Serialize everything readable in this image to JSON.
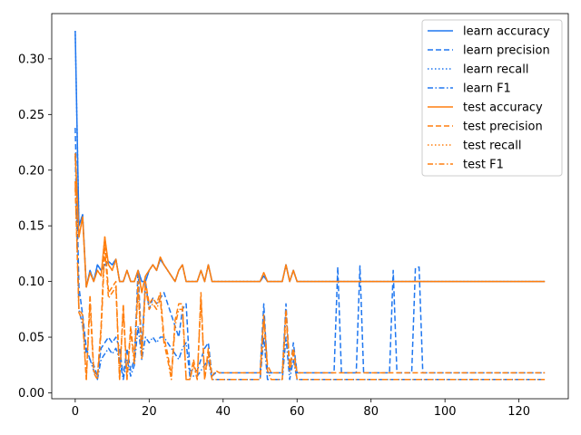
{
  "chart_data": {
    "type": "line",
    "title": "",
    "xlabel": "",
    "ylabel": "",
    "xlim": [
      -6.35,
      133.35
    ],
    "ylim": [
      -0.0053,
      0.3406
    ],
    "xticks": [
      0,
      20,
      40,
      60,
      80,
      100,
      120
    ],
    "yticks": [
      0.0,
      0.05,
      0.1,
      0.15,
      0.2,
      0.25,
      0.3
    ],
    "ytick_labels": [
      "0.00",
      "0.05",
      "0.10",
      "0.15",
      "0.20",
      "0.25",
      "0.30"
    ],
    "grid": false,
    "legend_position": "top-right",
    "colors": {
      "learn": "#1f77f0",
      "test": "#ff7f0e"
    },
    "series": [
      {
        "name": "learn accuracy",
        "color": "#1f77f0",
        "dash": "solid",
        "values": [
          0.325,
          0.15,
          0.16,
          0.095,
          0.11,
          0.1,
          0.115,
          0.11,
          0.115,
          0.118,
          0.115,
          0.12,
          0.1,
          0.1,
          0.11,
          0.1,
          0.1,
          0.11,
          0.1,
          0.1,
          0.11,
          0.115,
          0.11,
          0.12,
          0.115,
          0.11,
          0.105,
          0.1,
          0.11,
          0.115,
          0.1,
          0.1,
          0.1,
          0.1,
          0.11,
          0.1,
          0.115,
          0.1,
          0.1,
          0.1,
          0.1,
          0.1,
          0.1,
          0.1,
          0.1,
          0.1,
          0.1,
          0.1,
          0.1,
          0.1,
          0.1,
          0.105,
          0.1,
          0.1,
          0.1,
          0.1,
          0.1,
          0.115,
          0.1,
          0.11,
          0.1,
          0.1,
          0.1,
          0.1,
          0.1,
          0.1,
          0.1,
          0.1,
          0.1,
          0.1,
          0.1,
          0.1,
          0.1,
          0.1,
          0.1,
          0.1,
          0.1,
          0.1,
          0.1,
          0.1,
          0.1,
          0.1,
          0.1,
          0.1,
          0.1,
          0.1,
          0.1,
          0.1,
          0.1,
          0.1,
          0.1,
          0.1,
          0.1,
          0.1,
          0.1,
          0.1,
          0.1,
          0.1,
          0.1,
          0.1,
          0.1,
          0.1,
          0.1,
          0.1,
          0.1,
          0.1,
          0.1,
          0.1,
          0.1,
          0.1,
          0.1,
          0.1,
          0.1,
          0.1,
          0.1,
          0.1,
          0.1,
          0.1,
          0.1,
          0.1,
          0.1,
          0.1,
          0.1,
          0.1,
          0.1,
          0.1,
          0.1,
          0.1
        ]
      },
      {
        "name": "learn precision",
        "color": "#1f77f0",
        "dash": "dashed",
        "values": [
          0.238,
          0.095,
          0.07,
          0.04,
          0.03,
          0.025,
          0.015,
          0.04,
          0.045,
          0.05,
          0.045,
          0.05,
          0.04,
          0.015,
          0.04,
          0.02,
          0.03,
          0.11,
          0.04,
          0.1,
          0.075,
          0.085,
          0.08,
          0.085,
          0.09,
          0.08,
          0.07,
          0.06,
          0.05,
          0.075,
          0.08,
          0.02,
          0.02,
          0.02,
          0.03,
          0.04,
          0.045,
          0.015,
          0.018,
          0.018,
          0.018,
          0.018,
          0.018,
          0.018,
          0.018,
          0.018,
          0.018,
          0.018,
          0.018,
          0.018,
          0.018,
          0.08,
          0.018,
          0.018,
          0.018,
          0.018,
          0.018,
          0.08,
          0.018,
          0.045,
          0.018,
          0.018,
          0.018,
          0.018,
          0.018,
          0.018,
          0.018,
          0.018,
          0.018,
          0.018,
          0.018,
          0.113,
          0.018,
          0.018,
          0.018,
          0.018,
          0.018,
          0.114,
          0.018,
          0.018,
          0.018,
          0.018,
          0.018,
          0.018,
          0.018,
          0.018,
          0.11,
          0.018,
          0.018,
          0.018,
          0.018,
          0.018,
          0.112,
          0.113,
          0.018,
          0.018,
          0.018,
          0.018,
          0.018,
          0.018,
          0.018,
          0.018,
          0.018,
          0.018,
          0.018,
          0.018,
          0.018,
          0.018,
          0.018,
          0.018,
          0.018,
          0.018,
          0.018,
          0.018,
          0.018,
          0.018,
          0.018,
          0.018,
          0.018,
          0.018,
          0.018,
          0.018,
          0.018,
          0.018,
          0.018,
          0.018,
          0.018,
          0.018
        ]
      },
      {
        "name": "learn recall",
        "color": "#1f77f0",
        "dash": "dotted",
        "values": [
          0.325,
          0.15,
          0.16,
          0.095,
          0.11,
          0.1,
          0.115,
          0.11,
          0.115,
          0.118,
          0.115,
          0.12,
          0.1,
          0.1,
          0.11,
          0.1,
          0.1,
          0.11,
          0.1,
          0.1,
          0.11,
          0.115,
          0.11,
          0.12,
          0.115,
          0.11,
          0.105,
          0.1,
          0.11,
          0.115,
          0.1,
          0.1,
          0.1,
          0.1,
          0.11,
          0.1,
          0.115,
          0.1,
          0.1,
          0.1,
          0.1,
          0.1,
          0.1,
          0.1,
          0.1,
          0.1,
          0.1,
          0.1,
          0.1,
          0.1,
          0.1,
          0.105,
          0.1,
          0.1,
          0.1,
          0.1,
          0.1,
          0.115,
          0.1,
          0.11,
          0.1,
          0.1,
          0.1,
          0.1,
          0.1,
          0.1,
          0.1,
          0.1,
          0.1,
          0.1,
          0.1,
          0.1,
          0.1,
          0.1,
          0.1,
          0.1,
          0.1,
          0.1,
          0.1,
          0.1,
          0.1,
          0.1,
          0.1,
          0.1,
          0.1,
          0.1,
          0.1,
          0.1,
          0.1,
          0.1,
          0.1,
          0.1,
          0.1,
          0.1,
          0.1,
          0.1,
          0.1,
          0.1,
          0.1,
          0.1,
          0.1,
          0.1,
          0.1,
          0.1,
          0.1,
          0.1,
          0.1,
          0.1,
          0.1,
          0.1,
          0.1,
          0.1,
          0.1,
          0.1,
          0.1,
          0.1,
          0.1,
          0.1,
          0.1,
          0.1,
          0.1,
          0.1,
          0.1,
          0.1,
          0.1,
          0.1,
          0.1,
          0.1
        ]
      },
      {
        "name": "learn F1",
        "color": "#1f77f0",
        "dash": "dashdot",
        "values": [
          0.213,
          0.075,
          0.06,
          0.035,
          0.03,
          0.02,
          0.012,
          0.03,
          0.035,
          0.04,
          0.035,
          0.04,
          0.03,
          0.012,
          0.03,
          0.015,
          0.025,
          0.06,
          0.03,
          0.05,
          0.045,
          0.05,
          0.045,
          0.05,
          0.05,
          0.045,
          0.04,
          0.035,
          0.03,
          0.04,
          0.045,
          0.015,
          0.015,
          0.015,
          0.02,
          0.025,
          0.03,
          0.012,
          0.012,
          0.012,
          0.012,
          0.012,
          0.012,
          0.012,
          0.012,
          0.012,
          0.012,
          0.012,
          0.012,
          0.012,
          0.012,
          0.05,
          0.012,
          0.012,
          0.012,
          0.012,
          0.012,
          0.05,
          0.012,
          0.03,
          0.012,
          0.012,
          0.012,
          0.012,
          0.012,
          0.012,
          0.012,
          0.012,
          0.012,
          0.012,
          0.012,
          0.012,
          0.012,
          0.012,
          0.012,
          0.012,
          0.012,
          0.012,
          0.012,
          0.012,
          0.012,
          0.012,
          0.012,
          0.012,
          0.012,
          0.012,
          0.012,
          0.012,
          0.012,
          0.012,
          0.012,
          0.012,
          0.012,
          0.012,
          0.012,
          0.012,
          0.012,
          0.012,
          0.012,
          0.012,
          0.012,
          0.012,
          0.012,
          0.012,
          0.012,
          0.012,
          0.012,
          0.012,
          0.012,
          0.012,
          0.012,
          0.012,
          0.012,
          0.012,
          0.012,
          0.012,
          0.012,
          0.012,
          0.012,
          0.012,
          0.012,
          0.012,
          0.012,
          0.012,
          0.012,
          0.012,
          0.012,
          0.012
        ]
      },
      {
        "name": "test accuracy",
        "color": "#ff7f0e",
        "dash": "solid",
        "values": [
          0.215,
          0.14,
          0.158,
          0.095,
          0.108,
          0.1,
          0.11,
          0.105,
          0.14,
          0.115,
          0.11,
          0.12,
          0.1,
          0.1,
          0.11,
          0.1,
          0.1,
          0.11,
          0.09,
          0.105,
          0.11,
          0.115,
          0.11,
          0.122,
          0.115,
          0.11,
          0.105,
          0.1,
          0.11,
          0.115,
          0.1,
          0.1,
          0.1,
          0.1,
          0.11,
          0.1,
          0.115,
          0.1,
          0.1,
          0.1,
          0.1,
          0.1,
          0.1,
          0.1,
          0.1,
          0.1,
          0.1,
          0.1,
          0.1,
          0.1,
          0.1,
          0.108,
          0.1,
          0.1,
          0.1,
          0.1,
          0.1,
          0.115,
          0.1,
          0.11,
          0.1,
          0.1,
          0.1,
          0.1,
          0.1,
          0.1,
          0.1,
          0.1,
          0.1,
          0.1,
          0.1,
          0.1,
          0.1,
          0.1,
          0.1,
          0.1,
          0.1,
          0.1,
          0.1,
          0.1,
          0.1,
          0.1,
          0.1,
          0.1,
          0.1,
          0.1,
          0.1,
          0.1,
          0.1,
          0.1,
          0.1,
          0.1,
          0.1,
          0.1,
          0.1,
          0.1,
          0.1,
          0.1,
          0.1,
          0.1,
          0.1,
          0.1,
          0.1,
          0.1,
          0.1,
          0.1,
          0.1,
          0.1,
          0.1,
          0.1,
          0.1,
          0.1,
          0.1,
          0.1,
          0.1,
          0.1,
          0.1,
          0.1,
          0.1,
          0.1,
          0.1,
          0.1,
          0.1,
          0.1,
          0.1,
          0.1,
          0.1,
          0.1
        ]
      },
      {
        "name": "test precision",
        "color": "#ff7f0e",
        "dash": "dashed",
        "values": [
          0.19,
          0.075,
          0.07,
          0.012,
          0.088,
          0.02,
          0.015,
          0.06,
          0.14,
          0.09,
          0.095,
          0.1,
          0.012,
          0.08,
          0.012,
          0.06,
          0.03,
          0.1,
          0.035,
          0.1,
          0.08,
          0.085,
          0.08,
          0.09,
          0.05,
          0.035,
          0.015,
          0.065,
          0.08,
          0.08,
          0.012,
          0.012,
          0.03,
          0.012,
          0.09,
          0.012,
          0.04,
          0.015,
          0.02,
          0.018,
          0.018,
          0.018,
          0.018,
          0.018,
          0.018,
          0.018,
          0.018,
          0.018,
          0.018,
          0.018,
          0.018,
          0.07,
          0.025,
          0.018,
          0.018,
          0.018,
          0.018,
          0.075,
          0.025,
          0.04,
          0.018,
          0.018,
          0.018,
          0.018,
          0.018,
          0.018,
          0.018,
          0.018,
          0.018,
          0.018,
          0.018,
          0.018,
          0.018,
          0.018,
          0.018,
          0.018,
          0.018,
          0.018,
          0.018,
          0.018,
          0.018,
          0.018,
          0.018,
          0.018,
          0.018,
          0.018,
          0.018,
          0.018,
          0.018,
          0.018,
          0.018,
          0.018,
          0.018,
          0.018,
          0.018,
          0.018,
          0.018,
          0.018,
          0.018,
          0.018,
          0.018,
          0.018,
          0.018,
          0.018,
          0.018,
          0.018,
          0.018,
          0.018,
          0.018,
          0.018,
          0.018,
          0.018,
          0.018,
          0.018,
          0.018,
          0.018,
          0.018,
          0.018,
          0.018,
          0.018,
          0.018,
          0.018,
          0.018,
          0.018,
          0.018,
          0.018,
          0.018,
          0.018
        ]
      },
      {
        "name": "test recall",
        "color": "#ff7f0e",
        "dash": "dotted",
        "values": [
          0.215,
          0.14,
          0.158,
          0.095,
          0.108,
          0.1,
          0.11,
          0.105,
          0.14,
          0.115,
          0.11,
          0.12,
          0.1,
          0.1,
          0.11,
          0.1,
          0.1,
          0.11,
          0.09,
          0.105,
          0.11,
          0.115,
          0.11,
          0.122,
          0.115,
          0.11,
          0.105,
          0.1,
          0.11,
          0.115,
          0.1,
          0.1,
          0.1,
          0.1,
          0.11,
          0.1,
          0.115,
          0.1,
          0.1,
          0.1,
          0.1,
          0.1,
          0.1,
          0.1,
          0.1,
          0.1,
          0.1,
          0.1,
          0.1,
          0.1,
          0.1,
          0.108,
          0.1,
          0.1,
          0.1,
          0.1,
          0.1,
          0.115,
          0.1,
          0.11,
          0.1,
          0.1,
          0.1,
          0.1,
          0.1,
          0.1,
          0.1,
          0.1,
          0.1,
          0.1,
          0.1,
          0.1,
          0.1,
          0.1,
          0.1,
          0.1,
          0.1,
          0.1,
          0.1,
          0.1,
          0.1,
          0.1,
          0.1,
          0.1,
          0.1,
          0.1,
          0.1,
          0.1,
          0.1,
          0.1,
          0.1,
          0.1,
          0.1,
          0.1,
          0.1,
          0.1,
          0.1,
          0.1,
          0.1,
          0.1,
          0.1,
          0.1,
          0.1,
          0.1,
          0.1,
          0.1,
          0.1,
          0.1,
          0.1,
          0.1,
          0.1,
          0.1,
          0.1,
          0.1,
          0.1,
          0.1,
          0.1,
          0.1,
          0.1,
          0.1,
          0.1,
          0.1,
          0.1,
          0.1,
          0.1,
          0.1,
          0.1,
          0.1
        ]
      },
      {
        "name": "test F1",
        "color": "#ff7f0e",
        "dash": "dashdot",
        "values": [
          0.185,
          0.072,
          0.065,
          0.012,
          0.08,
          0.018,
          0.012,
          0.055,
          0.13,
          0.085,
          0.09,
          0.095,
          0.012,
          0.075,
          0.012,
          0.055,
          0.025,
          0.095,
          0.03,
          0.095,
          0.075,
          0.08,
          0.075,
          0.085,
          0.045,
          0.03,
          0.012,
          0.06,
          0.075,
          0.075,
          0.012,
          0.012,
          0.025,
          0.012,
          0.085,
          0.012,
          0.035,
          0.012,
          0.012,
          0.012,
          0.012,
          0.012,
          0.012,
          0.012,
          0.012,
          0.012,
          0.012,
          0.012,
          0.012,
          0.012,
          0.012,
          0.065,
          0.02,
          0.012,
          0.012,
          0.012,
          0.012,
          0.07,
          0.02,
          0.035,
          0.012,
          0.012,
          0.012,
          0.012,
          0.012,
          0.012,
          0.012,
          0.012,
          0.012,
          0.012,
          0.012,
          0.012,
          0.012,
          0.012,
          0.012,
          0.012,
          0.012,
          0.012,
          0.012,
          0.012,
          0.012,
          0.012,
          0.012,
          0.012,
          0.012,
          0.012,
          0.012,
          0.012,
          0.012,
          0.012,
          0.012,
          0.012,
          0.012,
          0.012,
          0.012,
          0.012,
          0.012,
          0.012,
          0.012,
          0.012,
          0.012,
          0.012,
          0.012,
          0.012,
          0.012,
          0.012,
          0.012,
          0.012,
          0.012,
          0.012,
          0.012,
          0.012,
          0.012,
          0.012,
          0.012,
          0.012,
          0.012,
          0.012,
          0.012,
          0.012,
          0.012,
          0.012,
          0.012,
          0.012,
          0.012,
          0.012,
          0.012,
          0.012
        ]
      }
    ]
  }
}
